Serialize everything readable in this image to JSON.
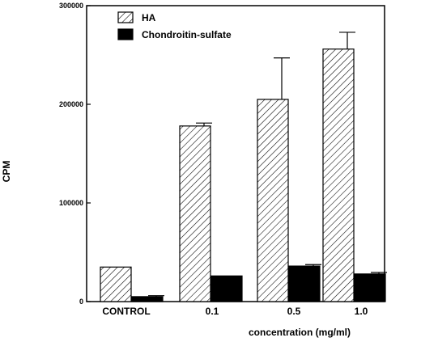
{
  "chart_data": {
    "type": "bar",
    "title": "",
    "xlabel": "concentration (mg/ml)",
    "ylabel": "CPM",
    "ylim": [
      0,
      300000
    ],
    "yticks": [
      0,
      100000,
      200000,
      300000
    ],
    "grid": false,
    "legend_position": "top-left",
    "categories": [
      "CONTROL",
      "0.1",
      "0.5",
      "1.0"
    ],
    "series": [
      {
        "name": "HA",
        "pattern": "diagonal-hatch",
        "color": "#000000",
        "values": [
          35000,
          178000,
          205000,
          256000
        ],
        "errors": [
          0,
          3000,
          42000,
          17000
        ]
      },
      {
        "name": "Chondroitin-sulfate",
        "pattern": "solid",
        "color": "#000000",
        "values": [
          5000,
          26000,
          36000,
          28000
        ],
        "errors": [
          1000,
          0,
          1500,
          1500
        ]
      }
    ]
  }
}
